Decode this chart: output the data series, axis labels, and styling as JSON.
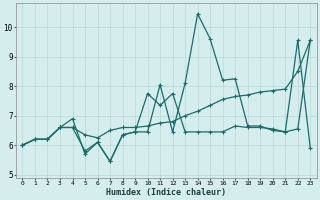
{
  "title": "",
  "xlabel": "Humidex (Indice chaleur)",
  "ylabel": "",
  "background_color": "#d6eded",
  "grid_color": "#b8d8d8",
  "line_color": "#1a6b6b",
  "x_data": [
    0,
    1,
    2,
    3,
    4,
    5,
    6,
    7,
    8,
    9,
    10,
    11,
    12,
    13,
    14,
    15,
    16,
    17,
    18,
    19,
    20,
    21,
    22,
    23
  ],
  "y_series1": [
    6.0,
    6.2,
    6.2,
    6.6,
    6.9,
    5.7,
    6.1,
    5.45,
    6.35,
    6.45,
    7.75,
    7.35,
    7.75,
    6.45,
    6.45,
    6.45,
    6.45,
    6.65,
    6.6,
    6.6,
    6.55,
    6.45,
    6.55,
    9.55
  ],
  "y_series2": [
    6.0,
    6.2,
    6.2,
    6.6,
    6.6,
    5.8,
    6.1,
    5.45,
    6.35,
    6.45,
    6.45,
    8.05,
    6.45,
    8.1,
    10.45,
    9.6,
    8.2,
    8.25,
    6.65,
    6.65,
    6.5,
    6.45,
    9.55,
    5.9
  ],
  "y_trend": [
    6.0,
    6.2,
    6.2,
    6.6,
    6.6,
    6.35,
    6.25,
    6.5,
    6.6,
    6.6,
    6.65,
    6.75,
    6.8,
    7.0,
    7.15,
    7.35,
    7.55,
    7.65,
    7.7,
    7.8,
    7.85,
    7.9,
    8.5,
    9.55
  ],
  "xlim": [
    -0.5,
    23.5
  ],
  "ylim": [
    4.9,
    10.8
  ],
  "yticks": [
    5,
    6,
    7,
    8,
    9,
    10
  ],
  "xticks": [
    0,
    1,
    2,
    3,
    4,
    5,
    6,
    7,
    8,
    9,
    10,
    11,
    12,
    13,
    14,
    15,
    16,
    17,
    18,
    19,
    20,
    21,
    22,
    23
  ],
  "marker": "+",
  "markersize": 3.5,
  "linewidth": 0.9
}
